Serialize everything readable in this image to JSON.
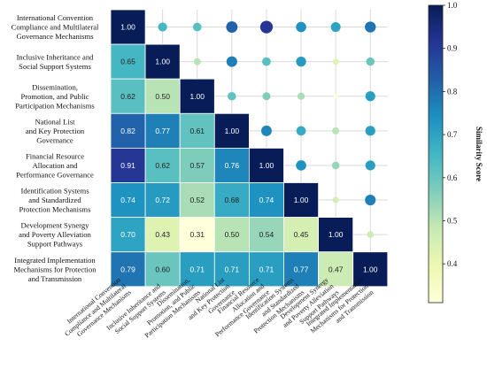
{
  "chart_data": {
    "type": "heatmap",
    "title": "",
    "labels": [
      "International Convention Compliance and Multilateral Governance Mechanisms",
      "Inclusive Inheritance and Social Support Systems",
      "Dissemination, Promotion, and Public Participation Mechanisms",
      "National List and Key Protection Governance",
      "Financial Resource Allocation and Performance Governance",
      "Identification Systems and Standardized Protection Mechanisms",
      "Development Synergy and Poverty Alleviation Support Pathways",
      "Integrated Implementation Mechanisms for Protection and Transmission"
    ],
    "row_labels": [
      [
        "International Convention",
        "Compliance and Multilateral",
        "Governance Mechanisms"
      ],
      [
        "Inclusive Inheritance and",
        "Social Support Systems"
      ],
      [
        "Dissemination,",
        "Promotion, and Public",
        "Participation Mechanisms"
      ],
      [
        "National List",
        "and Key Protection",
        "Governance"
      ],
      [
        "Financial Resource",
        "Allocation and",
        "Performance Governance"
      ],
      [
        "Identification Systems",
        "and Standardized",
        "Protection Mechanisms"
      ],
      [
        "Development Synergy",
        "and Poverty Alleviation",
        "Support Pathways"
      ],
      [
        "Integrated Implementation",
        "Mechanisms for Protection",
        "and Transmission"
      ]
    ],
    "col_labels": [
      [
        "International Convention",
        "Compliance and Multilateral",
        "Governance Mechanisms"
      ],
      [
        "Inclusive Inheritance and",
        "Social Support Systems"
      ],
      [
        "Dissemination,",
        "Promotion, and Public",
        "Participation Mechanisms"
      ],
      [
        "National List",
        "and Key Protection",
        "Governance"
      ],
      [
        "Financial Resource",
        "Allocation and",
        "Performance Governance"
      ],
      [
        "Identification Systems",
        "and Standardized",
        "Protection Mechanisms"
      ],
      [
        "Development Synergy",
        "and Poverty Alleviation",
        "Support Pathways"
      ],
      [
        "Integrated Implementation",
        "Mechanisms for Protection",
        "and Transmission"
      ]
    ],
    "matrix": [
      [
        1.0,
        0.65,
        0.62,
        0.82,
        0.91,
        0.74,
        0.7,
        0.79
      ],
      [
        0.65,
        1.0,
        0.5,
        0.77,
        0.62,
        0.72,
        0.43,
        0.6
      ],
      [
        0.62,
        0.5,
        1.0,
        0.61,
        0.57,
        0.52,
        0.31,
        0.71
      ],
      [
        0.82,
        0.77,
        0.61,
        1.0,
        0.76,
        0.68,
        0.5,
        0.71
      ],
      [
        0.91,
        0.62,
        0.57,
        0.76,
        1.0,
        0.74,
        0.54,
        0.71
      ],
      [
        0.74,
        0.72,
        0.52,
        0.68,
        0.74,
        1.0,
        0.45,
        0.77
      ],
      [
        0.7,
        0.43,
        0.31,
        0.5,
        0.54,
        0.45,
        1.0,
        0.47
      ],
      [
        0.79,
        0.6,
        0.71,
        0.71,
        0.71,
        0.77,
        0.47,
        1.0
      ]
    ],
    "lower_triangle": "annotated cells",
    "upper_triangle": "circles sized and colored by value",
    "colorbar": {
      "label": "Similarity Score",
      "range": [
        0.31,
        1.0
      ],
      "ticks": [
        "0.4",
        "0.5",
        "0.6",
        "0.7",
        "0.8",
        "0.9",
        "1.0"
      ],
      "tick_values": [
        0.4,
        0.5,
        0.6,
        0.7,
        0.8,
        0.9,
        1.0
      ]
    },
    "colormap": "YlGnBu",
    "colormap_stops": [
      "#ffffd9",
      "#edf8b1",
      "#c7e9b4",
      "#7fcdbb",
      "#41b6c4",
      "#1d91c0",
      "#225ea8",
      "#253494",
      "#081d58"
    ],
    "grid": true,
    "legend": "none"
  }
}
